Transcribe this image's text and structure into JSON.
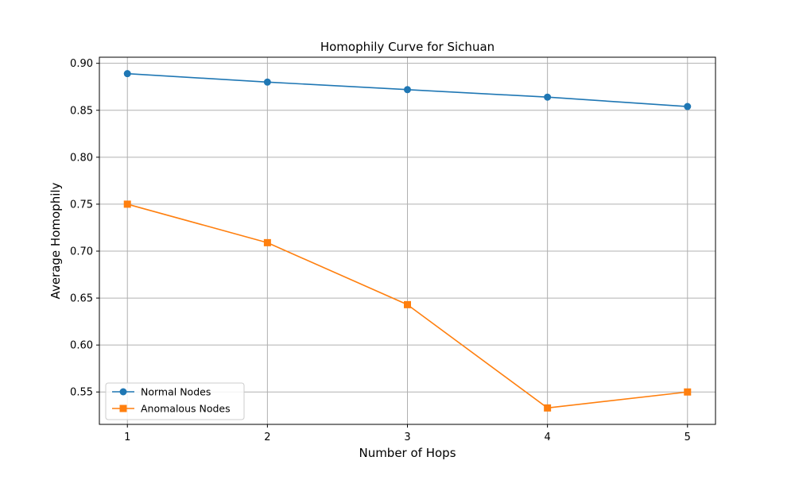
{
  "chart_data": {
    "type": "line",
    "title": "Homophily Curve for Sichuan",
    "xlabel": "Number of Hops",
    "ylabel": "Average Homophily",
    "x": [
      1,
      2,
      3,
      4,
      5
    ],
    "xticks": [
      "1",
      "2",
      "3",
      "4",
      "5"
    ],
    "xlim": [
      0.8,
      5.2
    ],
    "ylim": [
      0.5155,
      0.9065
    ],
    "yticks": [
      "0.55",
      "0.60",
      "0.65",
      "0.70",
      "0.75",
      "0.80",
      "0.85",
      "0.90"
    ],
    "grid": true,
    "legend_position": "lower-left",
    "series": [
      {
        "name": "Normal Nodes",
        "values": [
          0.889,
          0.88,
          0.872,
          0.864,
          0.854
        ],
        "color": "#1f77b4",
        "marker": "circle"
      },
      {
        "name": "Anomalous Nodes",
        "values": [
          0.75,
          0.709,
          0.643,
          0.533,
          0.55
        ],
        "color": "#ff7f0e",
        "marker": "square"
      }
    ]
  }
}
